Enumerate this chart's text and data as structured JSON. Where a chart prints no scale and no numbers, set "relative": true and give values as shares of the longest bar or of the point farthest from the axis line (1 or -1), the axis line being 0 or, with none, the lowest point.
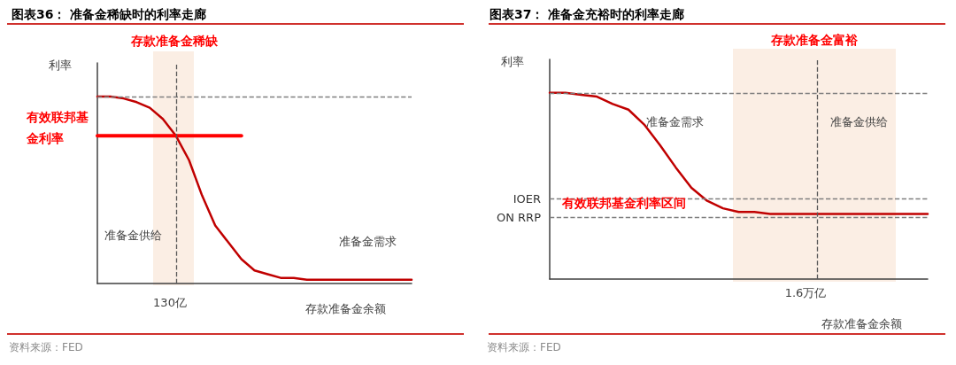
{
  "chart_data": [
    {
      "type": "line",
      "title": "图表36： 准备金稀缺时的利率走廊",
      "xlabel": "存款准备金余额",
      "ylabel": "利率",
      "relative": true,
      "grid": false,
      "legend": false,
      "marker": "none",
      "line_style": "solid",
      "categories": [
        null,
        null,
        null,
        null,
        null,
        null,
        null,
        null,
        null,
        null,
        null,
        null,
        null,
        null,
        null,
        null,
        null,
        null,
        null,
        null,
        null,
        null,
        null,
        null,
        null
      ],
      "series": [
        {
          "color": "#c00000",
          "values": [
            1,
            1,
            0.99,
            0.97,
            0.94,
            0.88,
            0.79,
            0.66,
            0.47,
            0.31,
            0.22,
            0.13,
            0.07,
            0.05,
            0.03,
            0.03,
            0.02,
            0.02,
            0.02,
            0.02,
            0.02,
            0.02,
            0.02,
            0.02,
            0.02
          ]
        },
        {
          "name": "有效联邦基金利率",
          "color": "#ff0000",
          "values": [
            0.79,
            0.79,
            0.79,
            0.79,
            0.79,
            0.79,
            0.79,
            0.79,
            0.79,
            0.79,
            0.79,
            0.79,
            null,
            null,
            null,
            null,
            null,
            null,
            null,
            null,
            null,
            null,
            null,
            null,
            null
          ]
        }
      ],
      "ref_lines": [
        {
          "axis": "y",
          "value": 1,
          "label": null,
          "color": "#7f7f7f",
          "line_style": "dashed"
        }
      ],
      "annotations": [
        "存款准备金稀缺",
        "准备金供给",
        "准备金需求",
        "130亿",
        "资料来源：FED"
      ]
    },
    {
      "type": "line",
      "title": "图表37： 准备金充裕时的利率走廊",
      "xlabel": "存款准备金余额",
      "ylabel": "利率",
      "relative": true,
      "grid": false,
      "legend": false,
      "marker": "none",
      "line_style": "solid",
      "categories": [
        null,
        null,
        null,
        null,
        null,
        null,
        null,
        null,
        null,
        null,
        null,
        null,
        null,
        null,
        null,
        null,
        null,
        null,
        null,
        null,
        null,
        null,
        null,
        null,
        null
      ],
      "series": [
        {
          "color": "#c00000",
          "values": [
            1,
            1,
            0.99,
            0.98,
            0.94,
            0.91,
            0.83,
            0.72,
            0.6,
            0.49,
            0.42,
            0.38,
            0.36,
            0.36,
            0.35,
            0.35,
            0.35,
            0.35,
            0.35,
            0.35,
            0.35,
            0.35,
            0.35,
            0.35,
            0.35
          ]
        }
      ],
      "ref_lines": [
        {
          "axis": "y",
          "value": 1,
          "label": null,
          "color": "#7f7f7f",
          "line_style": "dashed"
        },
        {
          "axis": "y",
          "value": 0.43,
          "label": "IOER",
          "color": "#7f7f7f",
          "line_style": "dashed"
        },
        {
          "axis": "y",
          "value": 0.33,
          "label": "ON RRP",
          "color": "#7f7f7f",
          "line_style": "dashed"
        }
      ],
      "annotations": [
        "存款准备金富裕",
        "准备金需求",
        "准备金供给",
        "有效联邦基金利率区间",
        "1.6万亿",
        "资料来源：FED"
      ]
    }
  ]
}
